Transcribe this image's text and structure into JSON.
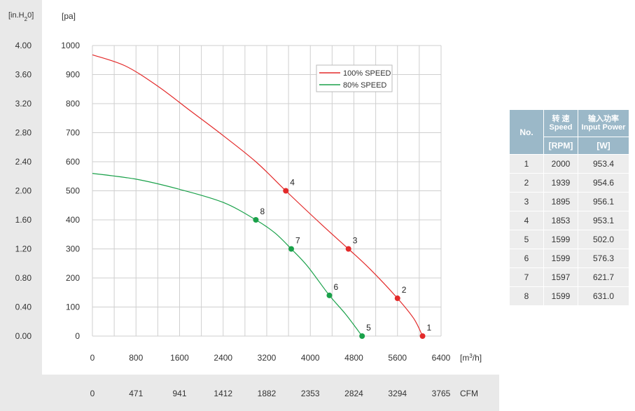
{
  "units": {
    "left_unit": "[in.H",
    "left_unit_sub": "2",
    "left_unit_end": "0]",
    "pa_unit": "[pa]",
    "flow_unit": "[m",
    "flow_unit_sup": "3",
    "flow_unit_end": "/h]",
    "cfm_unit": "CFM"
  },
  "colors": {
    "red": "#e32a2a",
    "green": "#1aa14a",
    "header": "#9bb8c8",
    "cell": "#ededed",
    "band": "#e9e9e9"
  },
  "chart_data": {
    "type": "line",
    "xlim": [
      0,
      6400
    ],
    "ylim": [
      0,
      1000
    ],
    "grid": true,
    "legend_position": "top-right",
    "x_ticks": [
      "0",
      "800",
      "1600",
      "2400",
      "3200",
      "4000",
      "4800",
      "5600",
      "6400"
    ],
    "y_ticks_pa": [
      "1000",
      "900",
      "800",
      "700",
      "600",
      "500",
      "400",
      "300",
      "200",
      "100",
      "0"
    ],
    "y_ticks_inh2o": [
      "4.00",
      "3.60",
      "3.20",
      "2.80",
      "2.40",
      "2.00",
      "1.60",
      "1.20",
      "0.80",
      "0.40",
      "0.00"
    ],
    "cfm_ticks": [
      "0",
      "471",
      "941",
      "1412",
      "1882",
      "2353",
      "2824",
      "3294",
      "3765"
    ],
    "series": [
      {
        "name": "100% SPEED",
        "color": "#e32a2a",
        "points": [
          [
            0,
            968
          ],
          [
            600,
            930
          ],
          [
            1200,
            860
          ],
          [
            1800,
            775
          ],
          [
            2400,
            690
          ],
          [
            3000,
            600
          ],
          [
            3550,
            500
          ],
          [
            4200,
            385
          ],
          [
            4700,
            300
          ],
          [
            5100,
            230
          ],
          [
            5600,
            130
          ],
          [
            5900,
            60
          ],
          [
            6060,
            0
          ]
        ],
        "markers": [
          {
            "label": "1",
            "x": 6060,
            "y": 0
          },
          {
            "label": "2",
            "x": 5600,
            "y": 130
          },
          {
            "label": "3",
            "x": 4700,
            "y": 300
          },
          {
            "label": "4",
            "x": 3550,
            "y": 500
          }
        ]
      },
      {
        "name": "80%  SPEED",
        "color": "#1aa14a",
        "points": [
          [
            0,
            560
          ],
          [
            800,
            540
          ],
          [
            1600,
            505
          ],
          [
            2400,
            460
          ],
          [
            3000,
            400
          ],
          [
            3350,
            355
          ],
          [
            3650,
            300
          ],
          [
            3950,
            240
          ],
          [
            4350,
            140
          ],
          [
            4650,
            75
          ],
          [
            4950,
            0
          ]
        ],
        "markers": [
          {
            "label": "5",
            "x": 4950,
            "y": 0
          },
          {
            "label": "6",
            "x": 4350,
            "y": 140
          },
          {
            "label": "7",
            "x": 3650,
            "y": 300
          },
          {
            "label": "8",
            "x": 3000,
            "y": 400
          }
        ]
      }
    ]
  },
  "table": {
    "h_no": "No.",
    "h_speed_cn": "转 速",
    "h_speed_en": "Speed",
    "h_power_cn": "输入功率",
    "h_power_en": "Input Power",
    "h_rpm": "[RPM]",
    "h_w": "[W]",
    "rows": [
      {
        "no": "1",
        "rpm": "2000",
        "w": "953.4"
      },
      {
        "no": "2",
        "rpm": "1939",
        "w": "954.6"
      },
      {
        "no": "3",
        "rpm": "1895",
        "w": "956.1"
      },
      {
        "no": "4",
        "rpm": "1853",
        "w": "953.1"
      },
      {
        "no": "5",
        "rpm": "1599",
        "w": "502.0"
      },
      {
        "no": "6",
        "rpm": "1599",
        "w": "576.3"
      },
      {
        "no": "7",
        "rpm": "1597",
        "w": "621.7"
      },
      {
        "no": "8",
        "rpm": "1599",
        "w": "631.0"
      }
    ]
  }
}
